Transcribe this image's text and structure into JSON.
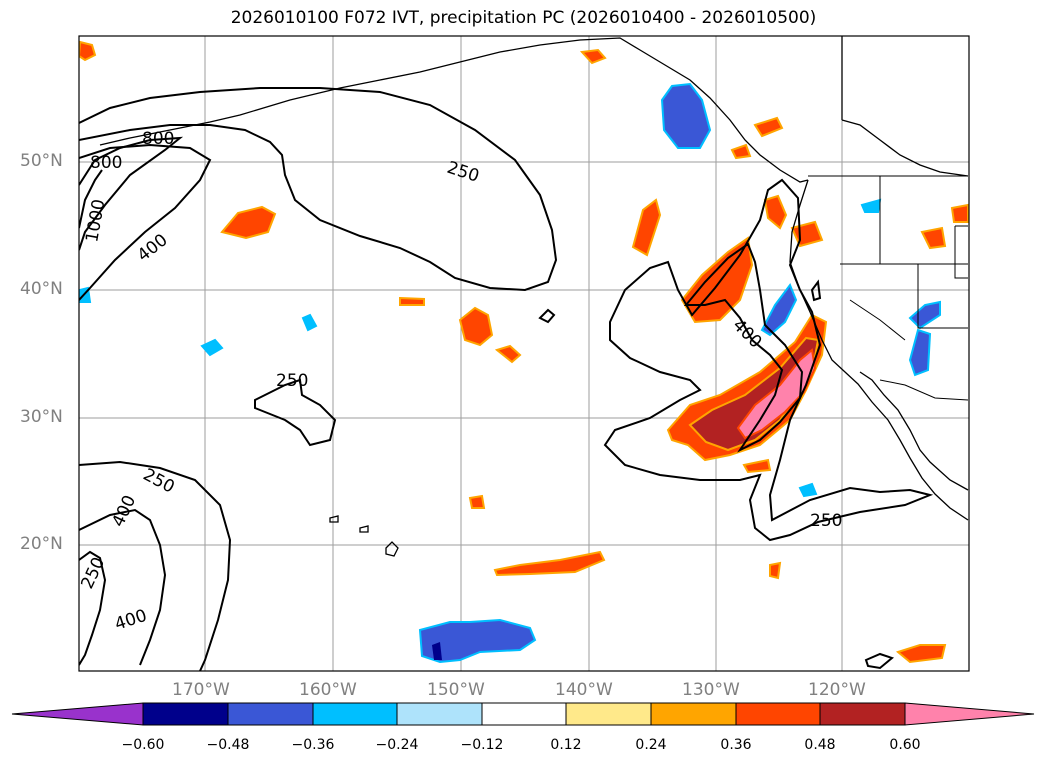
{
  "title": "2026010100 F072 IVT, precipitation PC (2026010400 - 2026010500)",
  "map": {
    "lat_labels": [
      "50°N",
      "40°N",
      "30°N",
      "20°N"
    ],
    "lon_labels": [
      "170°W",
      "160°W",
      "150°W",
      "140°W",
      "130°W",
      "120°W"
    ],
    "contour_labels": [
      "800",
      "800",
      "1000",
      "400",
      "250",
      "250",
      "400",
      "250",
      "250",
      "400",
      "400",
      "250"
    ]
  },
  "colorbar": {
    "ticks": [
      "−0.60",
      "−0.48",
      "−0.36",
      "−0.24",
      "−0.12",
      "0.12",
      "0.24",
      "0.36",
      "0.48",
      "0.60"
    ],
    "colors": {
      "lt_neg060": "#9932cc",
      "neg060_048": "#00008b",
      "neg048_036": "#3a57d6",
      "neg036_024": "#00bfff",
      "neg024_012": "#aee3fb",
      "neg012_012": "#ffffff",
      "p012_024": "#ffe98a",
      "p024_036": "#ffa500",
      "p036_048": "#ff4500",
      "p048_060": "#b22222",
      "gt060": "#ff82ab"
    }
  }
}
